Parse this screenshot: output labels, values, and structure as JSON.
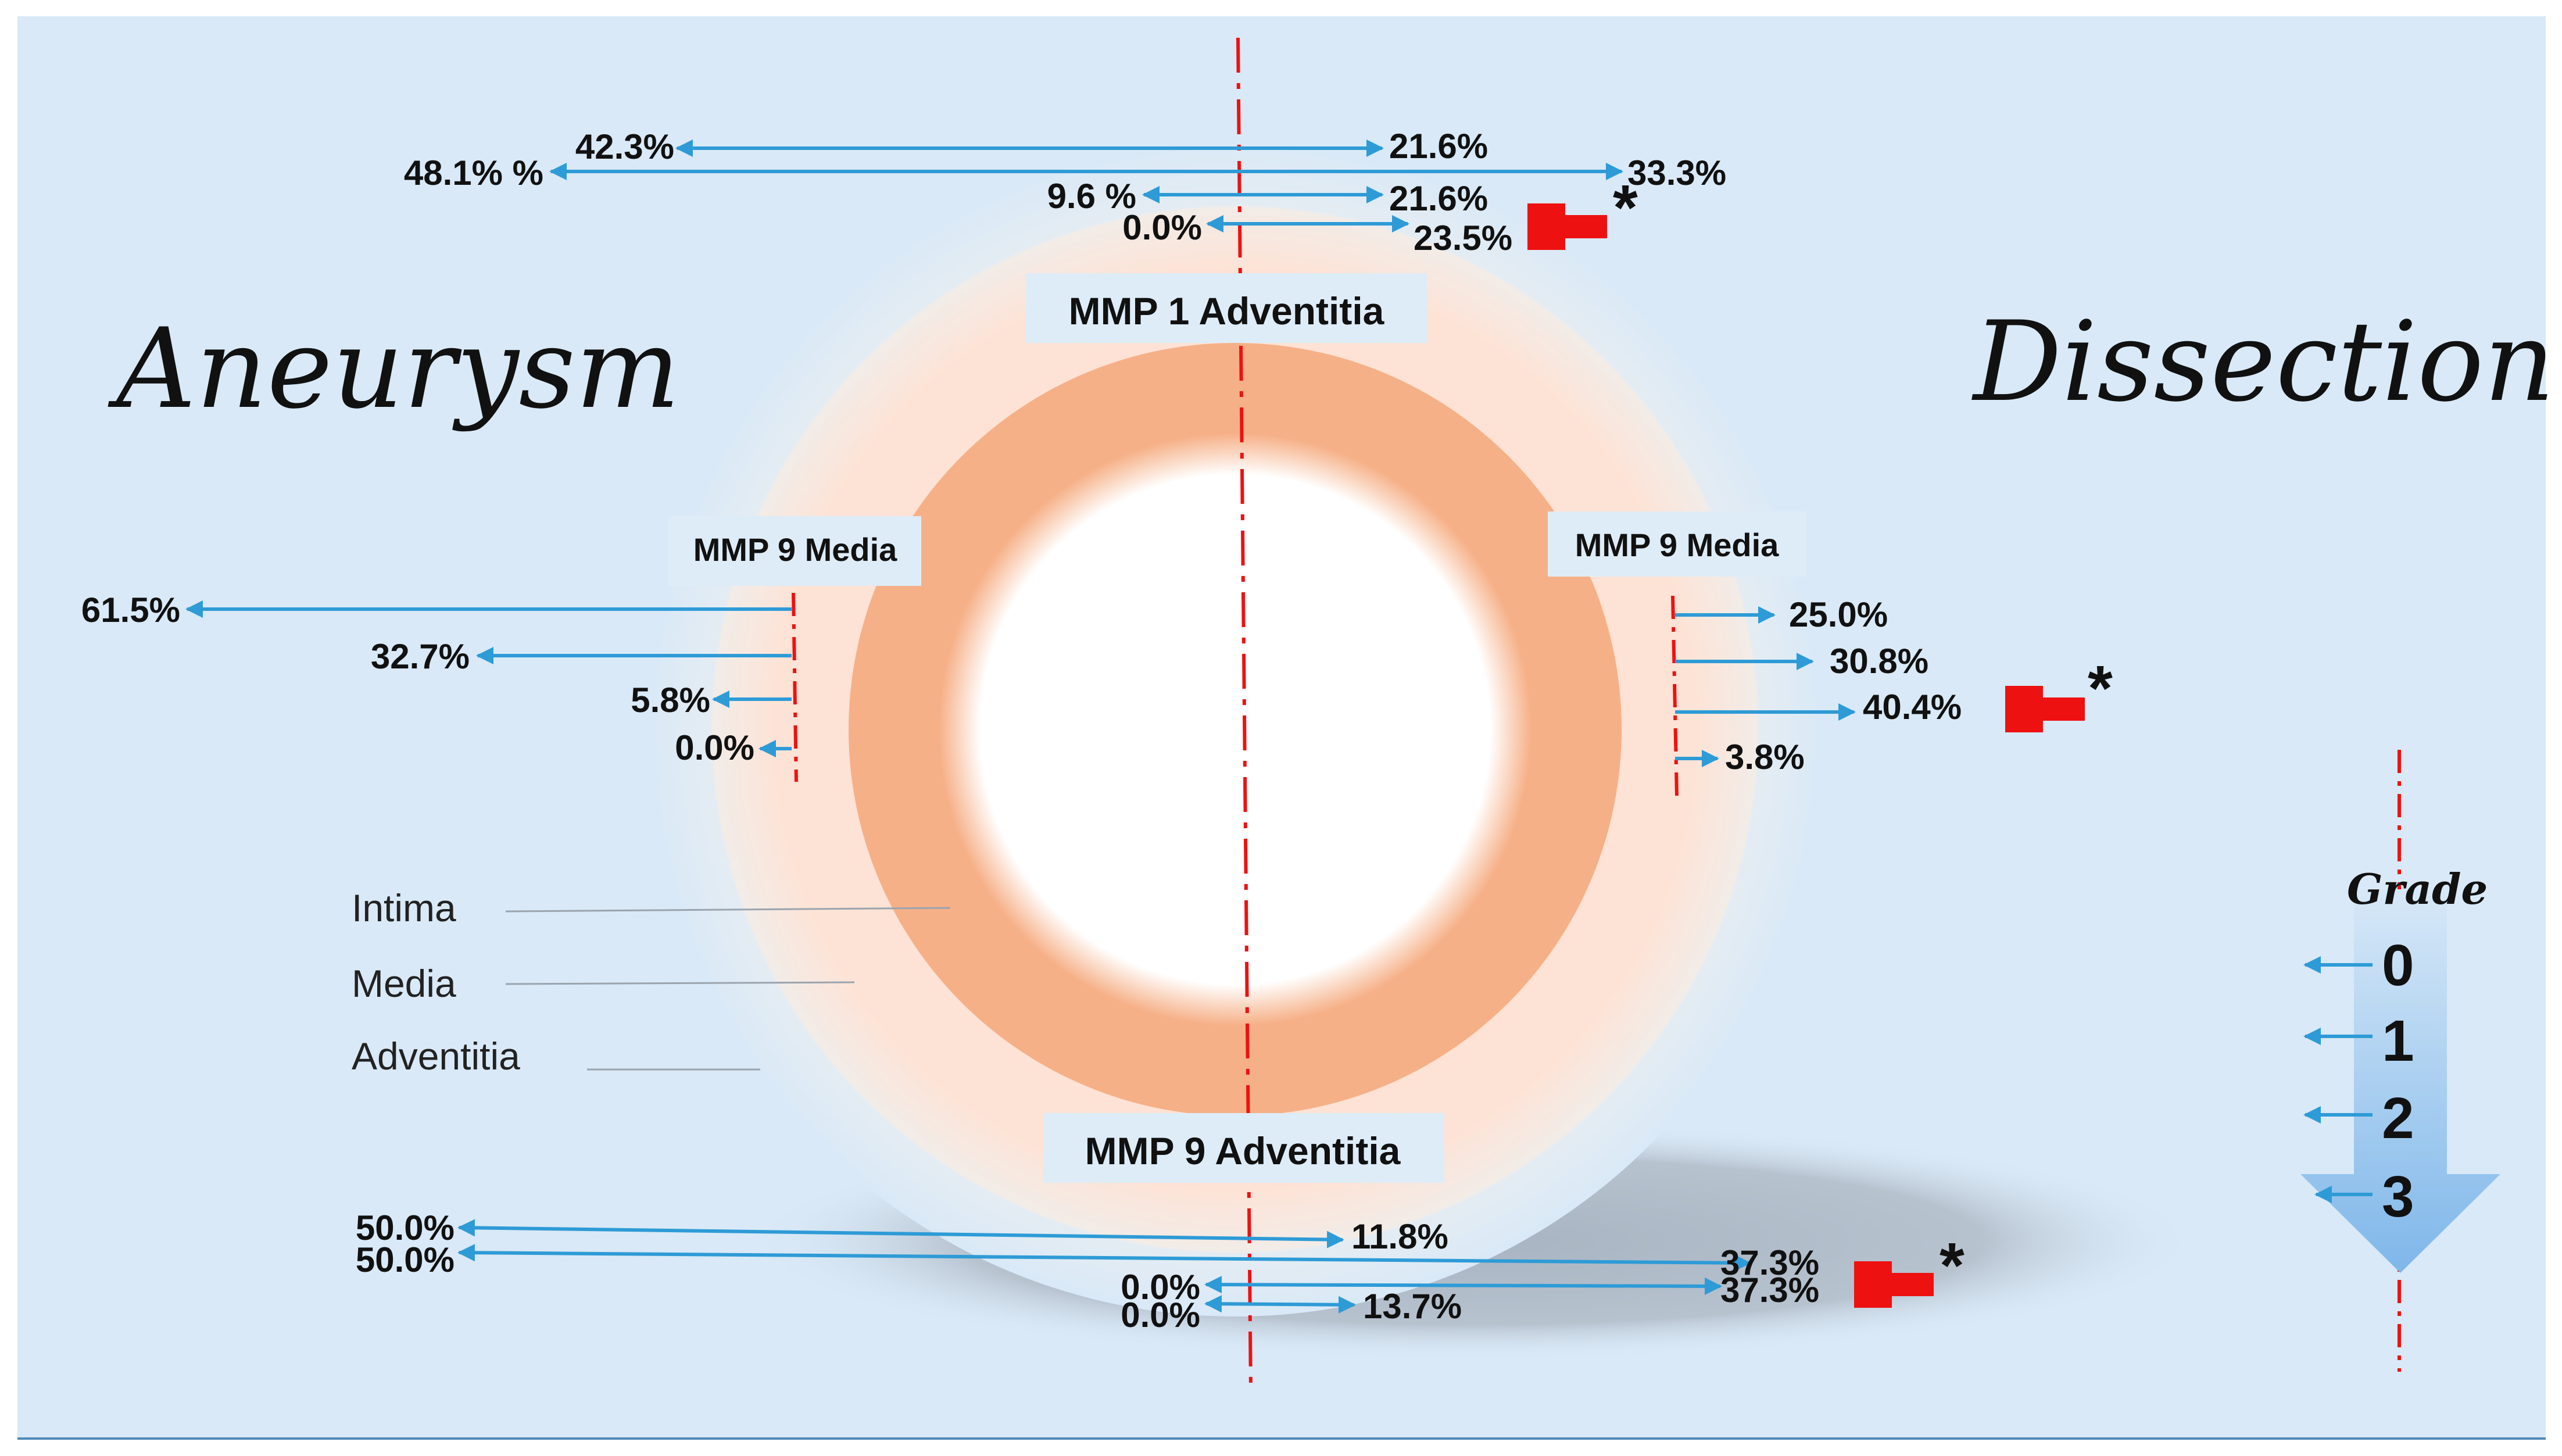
{
  "colors": {
    "background": "#d9e9f7",
    "arrow_blue": "#2e9bd6",
    "significance_red": "#ee1111",
    "adventitia_fill": "#fde3d6",
    "media_fill": "#f6b087",
    "label_box": "#deecf8"
  },
  "titles": {
    "left": "Aneurysm",
    "right": "Dissection"
  },
  "sections": {
    "mmp1_adventitia": {
      "label": "MMP 1 Adventitia",
      "aneurysm": [
        "42.3%",
        "48.1% %",
        "9.6 %",
        "0.0%"
      ],
      "dissection": [
        "21.6%",
        "33.3%",
        "21.6%",
        "23.5%"
      ]
    },
    "mmp9_media": {
      "label_left": "MMP 9 Media",
      "label_right": "MMP 9 Media",
      "aneurysm": [
        "61.5%",
        "32.7%",
        "5.8%",
        "0.0%"
      ],
      "dissection": [
        "25.0%",
        "30.8%",
        "40.4%",
        "3.8%"
      ]
    },
    "mmp9_adventitia": {
      "label": "MMP 9 Adventitia",
      "aneurysm": [
        "50.0%",
        "50.0%",
        "0.0%",
        "0.0%"
      ],
      "dissection": [
        "11.8%",
        "37.3%",
        "37.3%",
        "13.7%"
      ]
    }
  },
  "significance_marker": "*",
  "legend": {
    "intima": "Intima",
    "media": "Media",
    "adventitia": "Adventitia"
  },
  "grade": {
    "title": "Grade",
    "levels": [
      "0",
      "1",
      "2",
      "3"
    ]
  }
}
